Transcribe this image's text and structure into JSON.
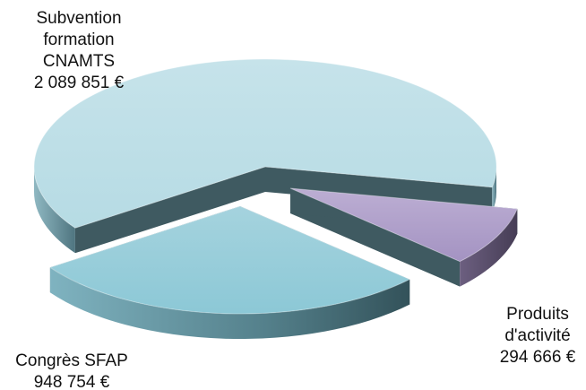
{
  "chart_data": {
    "type": "pie",
    "style": "3d-exploded",
    "title": "",
    "currency": "€",
    "slices": [
      {
        "name": "Subvention formation CNAMTS",
        "value": 2089851,
        "value_label": "2 089 851 €",
        "label_lines": [
          "Subvention",
          "formation",
          "CNAMTS"
        ],
        "color": "#bfe0e8"
      },
      {
        "name": "Congrès SFAP",
        "value": 948754,
        "value_label": "948 754 €",
        "label_lines": [
          "Congrès SFAP"
        ],
        "color": "#9ccdd9"
      },
      {
        "name": "Produits d'activité",
        "value": 294666,
        "value_label": "294 666 €",
        "label_lines": [
          "Produits",
          "d'activité"
        ],
        "color": "#b3a3cc"
      }
    ]
  }
}
